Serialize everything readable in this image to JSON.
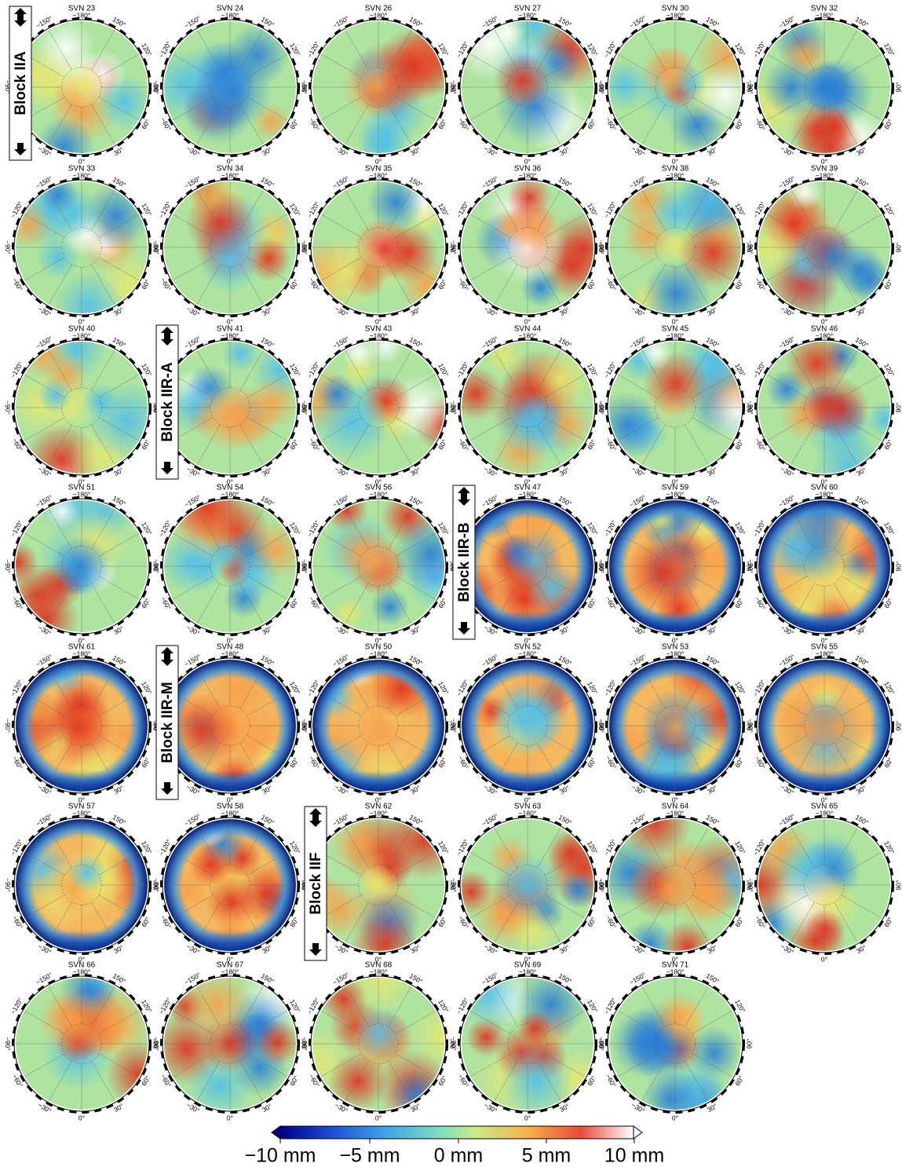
{
  "panels": [
    "SVN 23",
    "SVN 24",
    "SVN 26",
    "SVN 27",
    "SVN 30",
    "SVN 32",
    "SVN 33",
    "SVN 34",
    "SVN 35",
    "SVN 36",
    "SVN 38",
    "SVN 39",
    "SVN 40",
    "SVN 41",
    "SVN 43",
    "SVN 44",
    "SVN 45",
    "SVN 46",
    "SVN 51",
    "SVN 54",
    "SVN 56",
    "SVN 47",
    "SVN 59",
    "SVN 60",
    "SVN 61",
    "SVN 48",
    "SVN 50",
    "SVN 52",
    "SVN 53",
    "SVN 55",
    "SVN 57",
    "SVN 58",
    "SVN 62",
    "SVN 63",
    "SVN 64",
    "SVN 65",
    "SVN 66",
    "SVN 67",
    "SVN 68",
    "SVN 69",
    "SVN 71"
  ],
  "angle_labels": [
    "−180°",
    "150°",
    "120°",
    "90°",
    "60°",
    "30°",
    "0°",
    "−30°",
    "−60°",
    "−90°",
    "−120°",
    "−150°"
  ],
  "blocks": [
    "Block IIA",
    "Block IIR-A",
    "Block IIR-B",
    "Block IIR-M",
    "Block IIF"
  ],
  "colorbar": [
    "−10 mm",
    "−5 mm",
    "0 mm",
    "5 mm",
    "10 mm"
  ]
}
